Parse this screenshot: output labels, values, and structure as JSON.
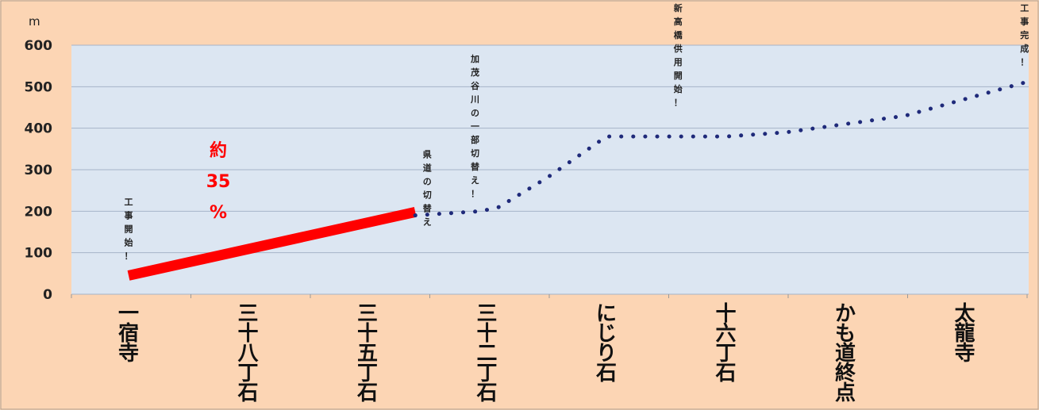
{
  "chart_data": {
    "type": "line",
    "ylabel": "m",
    "ylim": [
      0,
      600
    ],
    "yticks": [
      "0",
      "100",
      "200",
      "300",
      "400",
      "500",
      "600"
    ],
    "categories": [
      "一宿寺",
      "三十八丁石",
      "三十五丁石",
      "三十二丁石",
      "にじり石",
      "十六丁石",
      "かも道終点",
      "太龍寺"
    ],
    "grid": true,
    "colors": {
      "plot_bg": "#dce6f2",
      "outer_bg": "#fcd5b4",
      "completed": "#ff0000",
      "planned": "#1f2a7a",
      "grid": "#a6b4c8"
    },
    "series": [
      {
        "style": "solid",
        "color": "#ff0000",
        "points": [
          [
            0,
            45
          ],
          [
            2.4,
            198
          ]
        ]
      },
      {
        "style": "dotted",
        "color": "#1f2a7a",
        "points": [
          [
            2.4,
            190
          ],
          [
            2.95,
            200
          ],
          [
            3.1,
            210
          ],
          [
            3.5,
            280
          ],
          [
            4.0,
            380
          ],
          [
            5.0,
            380
          ],
          [
            5.5,
            390
          ],
          [
            6.0,
            410
          ],
          [
            6.5,
            430
          ],
          [
            7.0,
            470
          ],
          [
            7.5,
            510
          ]
        ]
      }
    ],
    "annotations": [
      {
        "text": "工事開始！",
        "x": 0,
        "y": 215
      },
      {
        "text": "県道の切替え",
        "x": 2.5,
        "y": 330
      },
      {
        "text": "加茂谷川の一部切替え！",
        "x": 2.9,
        "y": 560
      },
      {
        "text": "新高橋供用開始！",
        "x": 4.6,
        "y": 700
      },
      {
        "text": "工事完成！",
        "x": 7.5,
        "y": 695
      }
    ],
    "progress_label": {
      "lines": [
        "約",
        "35",
        "%"
      ]
    }
  }
}
